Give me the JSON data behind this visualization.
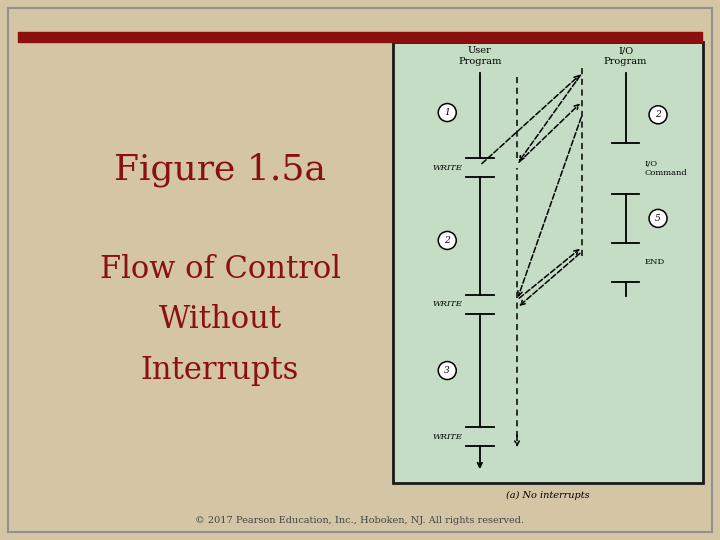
{
  "bg_color": "#d4c5a5",
  "parchment_color": "#d4c5a5",
  "slide_border_color": "#a0a0a0",
  "top_bar_color": "#8b1010",
  "diagram_bg": "#c5ddc5",
  "diagram_border": "#1a1a1a",
  "title_text": "Figure 1.5a",
  "subtitle_lines": [
    "Flow of Control",
    "Without",
    "Interrupts"
  ],
  "title_color": "#8b1010",
  "caption": "(a) No interrupts",
  "footer": "© 2017 Pearson Education, Inc., Hoboken, NJ. All rights reserved.",
  "title_fontsize": 26,
  "subtitle_fontsize": 22,
  "footer_fontsize": 7
}
